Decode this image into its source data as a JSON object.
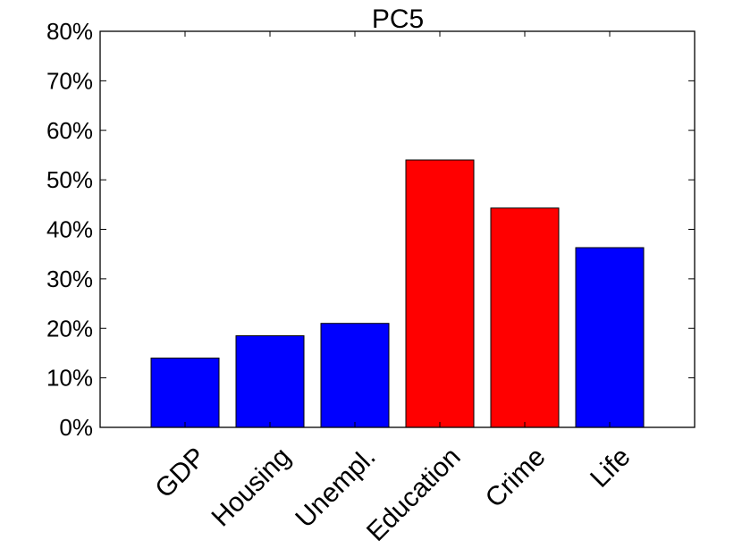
{
  "chart_data": {
    "type": "bar",
    "title": "PC5",
    "xlabel": "",
    "ylabel": "",
    "categories": [
      "GDP",
      "Housing",
      "Unempl.",
      "Education",
      "Crime",
      "Life"
    ],
    "values": [
      14,
      18.5,
      21,
      54,
      44.3,
      36.3
    ],
    "bar_colors": [
      "#0000ff",
      "#0000ff",
      "#0000ff",
      "#ff0000",
      "#ff0000",
      "#0000ff"
    ],
    "ylim": [
      0,
      80
    ],
    "yticks": [
      0,
      10,
      20,
      30,
      40,
      50,
      60,
      70,
      80
    ],
    "ytick_labels": [
      "0%",
      "10%",
      "20%",
      "30%",
      "40%",
      "50%",
      "60%",
      "70%",
      "80%"
    ],
    "grid": false,
    "legend": "none"
  }
}
